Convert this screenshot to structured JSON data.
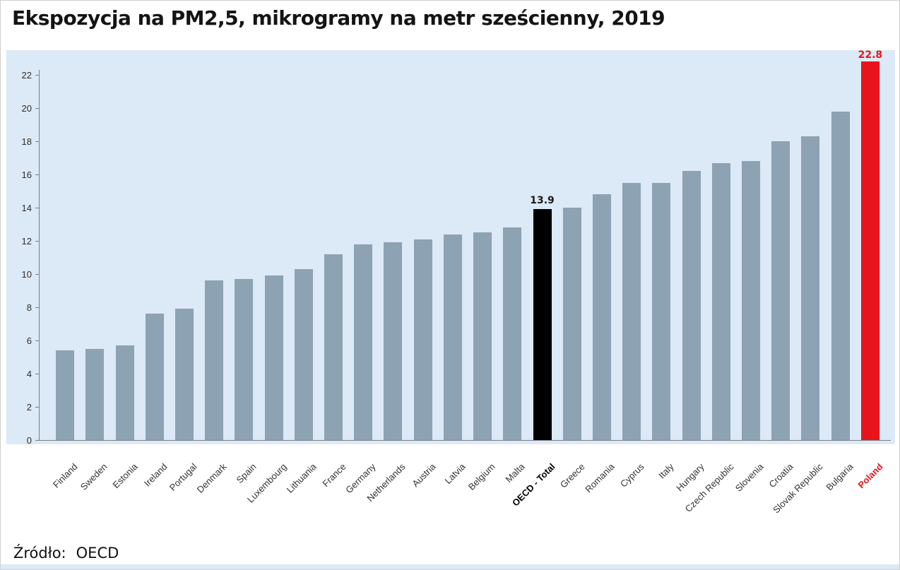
{
  "source": {
    "label": "Źródło:",
    "value": "OECD"
  },
  "chart_data": {
    "type": "bar",
    "title": "Ekspozycja na PM2,5, mikrogramy na metr sześcienny, 2019",
    "categories": [
      "Finland",
      "Sweden",
      "Estonia",
      "Ireland",
      "Portugal",
      "Denmark",
      "Spain",
      "Luxembourg",
      "Lithuania",
      "France",
      "Germany",
      "Netherlands",
      "Austria",
      "Latvia",
      "Belgium",
      "Malta",
      "OECD - Total",
      "Greece",
      "Romania",
      "Cyprus",
      "Italy",
      "Hungary",
      "Czech Republic",
      "Slovenia",
      "Croatia",
      "Slovak Republic",
      "Bulgaria",
      "Poland"
    ],
    "values": [
      5.4,
      5.5,
      5.7,
      7.6,
      7.9,
      9.6,
      9.7,
      9.9,
      10.3,
      11.2,
      11.8,
      11.9,
      12.1,
      12.4,
      12.5,
      12.8,
      13.9,
      14.0,
      14.8,
      15.5,
      15.5,
      16.2,
      16.7,
      16.8,
      18.0,
      18.3,
      19.8,
      22.8
    ],
    "ylim": [
      0,
      22
    ],
    "yticks": [
      0,
      2,
      4,
      6,
      8,
      10,
      12,
      14,
      16,
      18,
      20,
      22
    ],
    "grid": false,
    "legend": null,
    "default_bar_color": "#8da2b2",
    "plot_bg_color": "#dce9f6",
    "highlighted_bars": [
      {
        "category": "OECD - Total",
        "value": 13.9,
        "color": "#000000",
        "data_label": "13.9",
        "label_color": "#1a1a1a",
        "category_label_style": "bold-black"
      },
      {
        "category": "Poland",
        "value": 22.8,
        "color": "#e8141c",
        "data_label": "22.8",
        "label_color": "#e8141c",
        "category_label_style": "bold-red"
      }
    ]
  }
}
